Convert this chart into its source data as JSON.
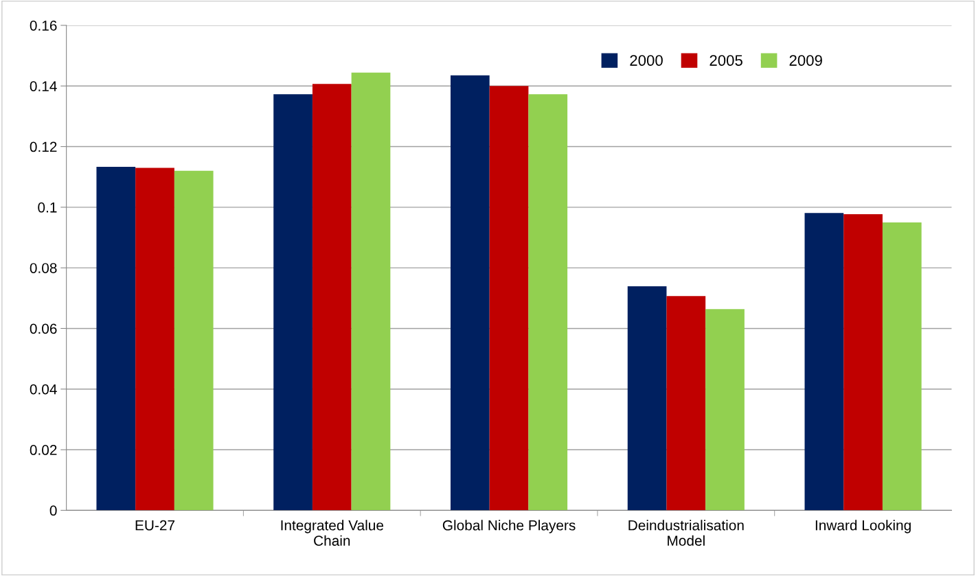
{
  "chart_data": {
    "type": "bar",
    "categories": [
      "EU-27",
      "Integrated Value\nChain",
      "Global Niche Players",
      "Deindustrialisation\nModel",
      "Inward Looking"
    ],
    "series": [
      {
        "name": "2000",
        "color": "#002060",
        "values": [
          0.1133,
          0.1373,
          0.1435,
          0.0739,
          0.0981
        ]
      },
      {
        "name": "2005",
        "color": "#c00000",
        "values": [
          0.113,
          0.1407,
          0.14,
          0.0707,
          0.0977
        ]
      },
      {
        "name": "2009",
        "color": "#92d050",
        "values": [
          0.112,
          0.1444,
          0.1373,
          0.0664,
          0.095
        ]
      }
    ],
    "ylim": [
      0,
      0.16
    ],
    "yticks": [
      {
        "value": 0,
        "label": "0"
      },
      {
        "value": 0.02,
        "label": "0.02"
      },
      {
        "value": 0.04,
        "label": "0.04"
      },
      {
        "value": 0.06,
        "label": "0.06"
      },
      {
        "value": 0.08,
        "label": "0.08"
      },
      {
        "value": 0.1,
        "label": "0.1"
      },
      {
        "value": 0.12,
        "label": "0.12"
      },
      {
        "value": 0.14,
        "label": "0.14"
      },
      {
        "value": 0.16,
        "label": "0.16"
      }
    ],
    "grid": "y",
    "legend": "top right"
  }
}
